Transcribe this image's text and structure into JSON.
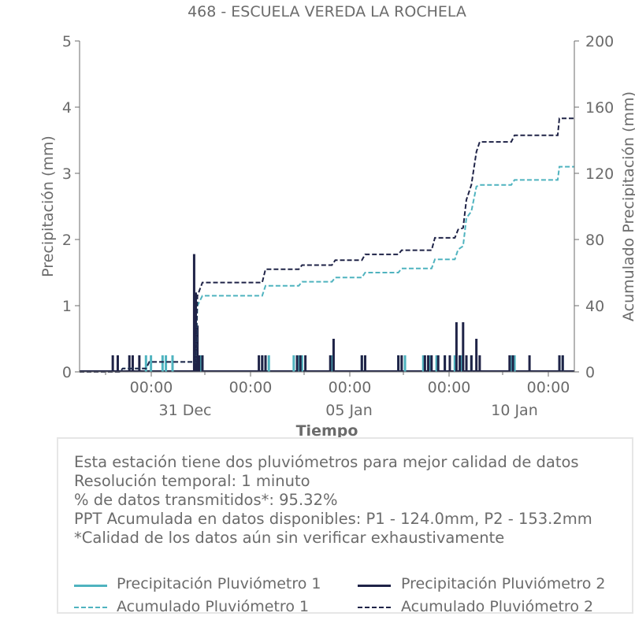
{
  "chart_data": {
    "type": "bar",
    "title": "468 - ESCUELA VEREDA LA ROCHELA",
    "xlabel": "Tiempo",
    "ylabel": "Precipitación (mm)",
    "y2label": "Acumulado Precipitación (mm)",
    "ylim": [
      0,
      5
    ],
    "y2lim": [
      0,
      200
    ],
    "y_ticks": [
      "0",
      "1",
      "2",
      "3",
      "4",
      "5"
    ],
    "y2_ticks": [
      "0",
      "40",
      "80",
      "120",
      "160",
      "200"
    ],
    "x_range_days": [
      -3.5,
      11.4
    ],
    "x_tick_labels": [
      {
        "day": 0,
        "label": "00:00"
      },
      {
        "day": 3,
        "label": "00:00"
      },
      {
        "day": 6,
        "label": "00:00"
      },
      {
        "day": 9,
        "label": "00:00"
      },
      {
        "day": 12,
        "label": "00:00"
      }
    ],
    "x_date_labels": [
      {
        "day": 1,
        "label": "31 Dec"
      },
      {
        "day": 6,
        "label": "05 Jan"
      },
      {
        "day": 11,
        "label": "10 Jan"
      }
    ],
    "grid": false,
    "series": [
      {
        "name": "Precipitación Pluviómetro 1",
        "color": "#4fb3bf",
        "style": "bar",
        "axis": "left",
        "points": [
          [
            -1.5,
            0.25
          ],
          [
            -1.35,
            0.25
          ],
          [
            -1.0,
            0.25
          ],
          [
            -0.9,
            0.25
          ],
          [
            -0.7,
            0.25
          ],
          [
            0.1,
            0.25
          ],
          [
            0.15,
            0.25
          ],
          [
            0.2,
            0.25
          ],
          [
            2.0,
            0.25
          ],
          [
            2.1,
            0.25
          ],
          [
            2.2,
            0.25
          ],
          [
            2.95,
            0.25
          ],
          [
            3.1,
            0.25
          ],
          [
            3.2,
            0.25
          ],
          [
            4.1,
            0.25
          ],
          [
            5.0,
            0.25
          ],
          [
            5.1,
            0.25
          ],
          [
            6.1,
            0.25
          ],
          [
            6.3,
            0.25
          ],
          [
            6.85,
            0.25
          ],
          [
            7.05,
            0.25
          ],
          [
            7.25,
            0.25
          ],
          [
            7.5,
            0.25
          ],
          [
            7.8,
            0.25
          ],
          [
            8.0,
            0.25
          ],
          [
            8.15,
            0.25
          ],
          [
            8.3,
            0.25
          ],
          [
            9.5,
            0.25
          ],
          [
            9.6,
            0.25
          ],
          [
            10.95,
            0.25
          ],
          [
            11.05,
            0.25
          ]
        ]
      },
      {
        "name": "Precipitación Pluviómetro 2",
        "color": "#1f2347",
        "style": "bar",
        "axis": "left",
        "points": [
          [
            -2.5,
            0.25
          ],
          [
            -2.35,
            0.25
          ],
          [
            -2.0,
            0.25
          ],
          [
            -1.9,
            0.25
          ],
          [
            -1.7,
            0.25
          ],
          [
            -0.05,
            1.78
          ],
          [
            0.0,
            1.2
          ],
          [
            0.05,
            0.7
          ],
          [
            0.1,
            0.25
          ],
          [
            0.2,
            0.25
          ],
          [
            1.9,
            0.25
          ],
          [
            2.0,
            0.25
          ],
          [
            2.1,
            0.25
          ],
          [
            3.05,
            0.25
          ],
          [
            3.15,
            0.25
          ],
          [
            3.3,
            0.25
          ],
          [
            4.05,
            0.25
          ],
          [
            4.15,
            0.5
          ],
          [
            5.0,
            0.25
          ],
          [
            5.1,
            0.25
          ],
          [
            6.1,
            0.25
          ],
          [
            6.2,
            0.25
          ],
          [
            6.9,
            0.25
          ],
          [
            7.0,
            0.25
          ],
          [
            7.1,
            0.25
          ],
          [
            7.3,
            0.25
          ],
          [
            7.5,
            0.25
          ],
          [
            7.65,
            0.25
          ],
          [
            7.85,
            0.75
          ],
          [
            7.95,
            0.25
          ],
          [
            8.05,
            0.75
          ],
          [
            8.15,
            0.25
          ],
          [
            8.3,
            0.25
          ],
          [
            8.45,
            0.5
          ],
          [
            8.55,
            0.25
          ],
          [
            9.45,
            0.25
          ],
          [
            9.55,
            0.25
          ],
          [
            10.05,
            0.25
          ],
          [
            10.95,
            0.25
          ],
          [
            11.05,
            0.25
          ]
        ]
      },
      {
        "name": "Acumulado Pluviómetro 1",
        "color": "#4fb3bf",
        "style": "dashed",
        "axis": "right",
        "points": [
          [
            -3.5,
            0
          ],
          [
            -2.3,
            0
          ],
          [
            -2.2,
            2
          ],
          [
            -1.5,
            2
          ],
          [
            -1.4,
            6
          ],
          [
            0.0,
            6
          ],
          [
            0.05,
            40
          ],
          [
            0.2,
            46
          ],
          [
            2.0,
            46
          ],
          [
            2.1,
            52
          ],
          [
            3.1,
            52
          ],
          [
            3.2,
            54.5
          ],
          [
            4.1,
            54.5
          ],
          [
            4.2,
            57
          ],
          [
            5.0,
            57
          ],
          [
            5.1,
            60
          ],
          [
            6.1,
            60
          ],
          [
            6.2,
            62.5
          ],
          [
            7.1,
            62.5
          ],
          [
            7.2,
            68
          ],
          [
            7.8,
            68
          ],
          [
            7.9,
            74
          ],
          [
            8.05,
            76
          ],
          [
            8.15,
            93
          ],
          [
            8.3,
            97
          ],
          [
            8.45,
            112
          ],
          [
            8.55,
            113
          ],
          [
            9.5,
            113
          ],
          [
            9.6,
            116
          ],
          [
            10.9,
            116
          ],
          [
            10.95,
            124
          ],
          [
            11.4,
            124
          ]
        ]
      },
      {
        "name": "Acumulado Pluviómetro 2",
        "color": "#1f2347",
        "style": "dashed",
        "axis": "right",
        "points": [
          [
            -3.5,
            0
          ],
          [
            -2.3,
            0
          ],
          [
            -2.2,
            2
          ],
          [
            -1.5,
            2
          ],
          [
            -1.4,
            6
          ],
          [
            0.0,
            6
          ],
          [
            0.05,
            46
          ],
          [
            0.2,
            54
          ],
          [
            2.0,
            54
          ],
          [
            2.1,
            62
          ],
          [
            3.1,
            62
          ],
          [
            3.2,
            64.5
          ],
          [
            4.1,
            64.5
          ],
          [
            4.2,
            67.5
          ],
          [
            5.0,
            67.5
          ],
          [
            5.1,
            71
          ],
          [
            6.1,
            71
          ],
          [
            6.2,
            73.5
          ],
          [
            7.1,
            73.5
          ],
          [
            7.2,
            81
          ],
          [
            7.8,
            81
          ],
          [
            7.9,
            86
          ],
          [
            8.05,
            87
          ],
          [
            8.15,
            104
          ],
          [
            8.3,
            113
          ],
          [
            8.45,
            133
          ],
          [
            8.55,
            139
          ],
          [
            9.5,
            139
          ],
          [
            9.6,
            143
          ],
          [
            10.9,
            143
          ],
          [
            10.95,
            153.2
          ],
          [
            11.4,
            153.2
          ]
        ]
      }
    ]
  },
  "info": {
    "lines": [
      "Esta estación tiene dos pluviómetros para mejor calidad de datos",
      "Resolución temporal: 1 minuto",
      "% de datos transmitidos*: 95.32%",
      "PPT Acumulada en datos disponibles: P1 - 124.0mm, P2 - 153.2mm",
      "*Calidad de los datos aún sin verificar exhaustivamente"
    ]
  },
  "legend": {
    "p1": "Precipitación Pluviómetro 1",
    "p2": "Precipitación Pluviómetro 2",
    "a1": "Acumulado Pluviómetro 1",
    "a2": "Acumulado Pluviómetro 2"
  }
}
